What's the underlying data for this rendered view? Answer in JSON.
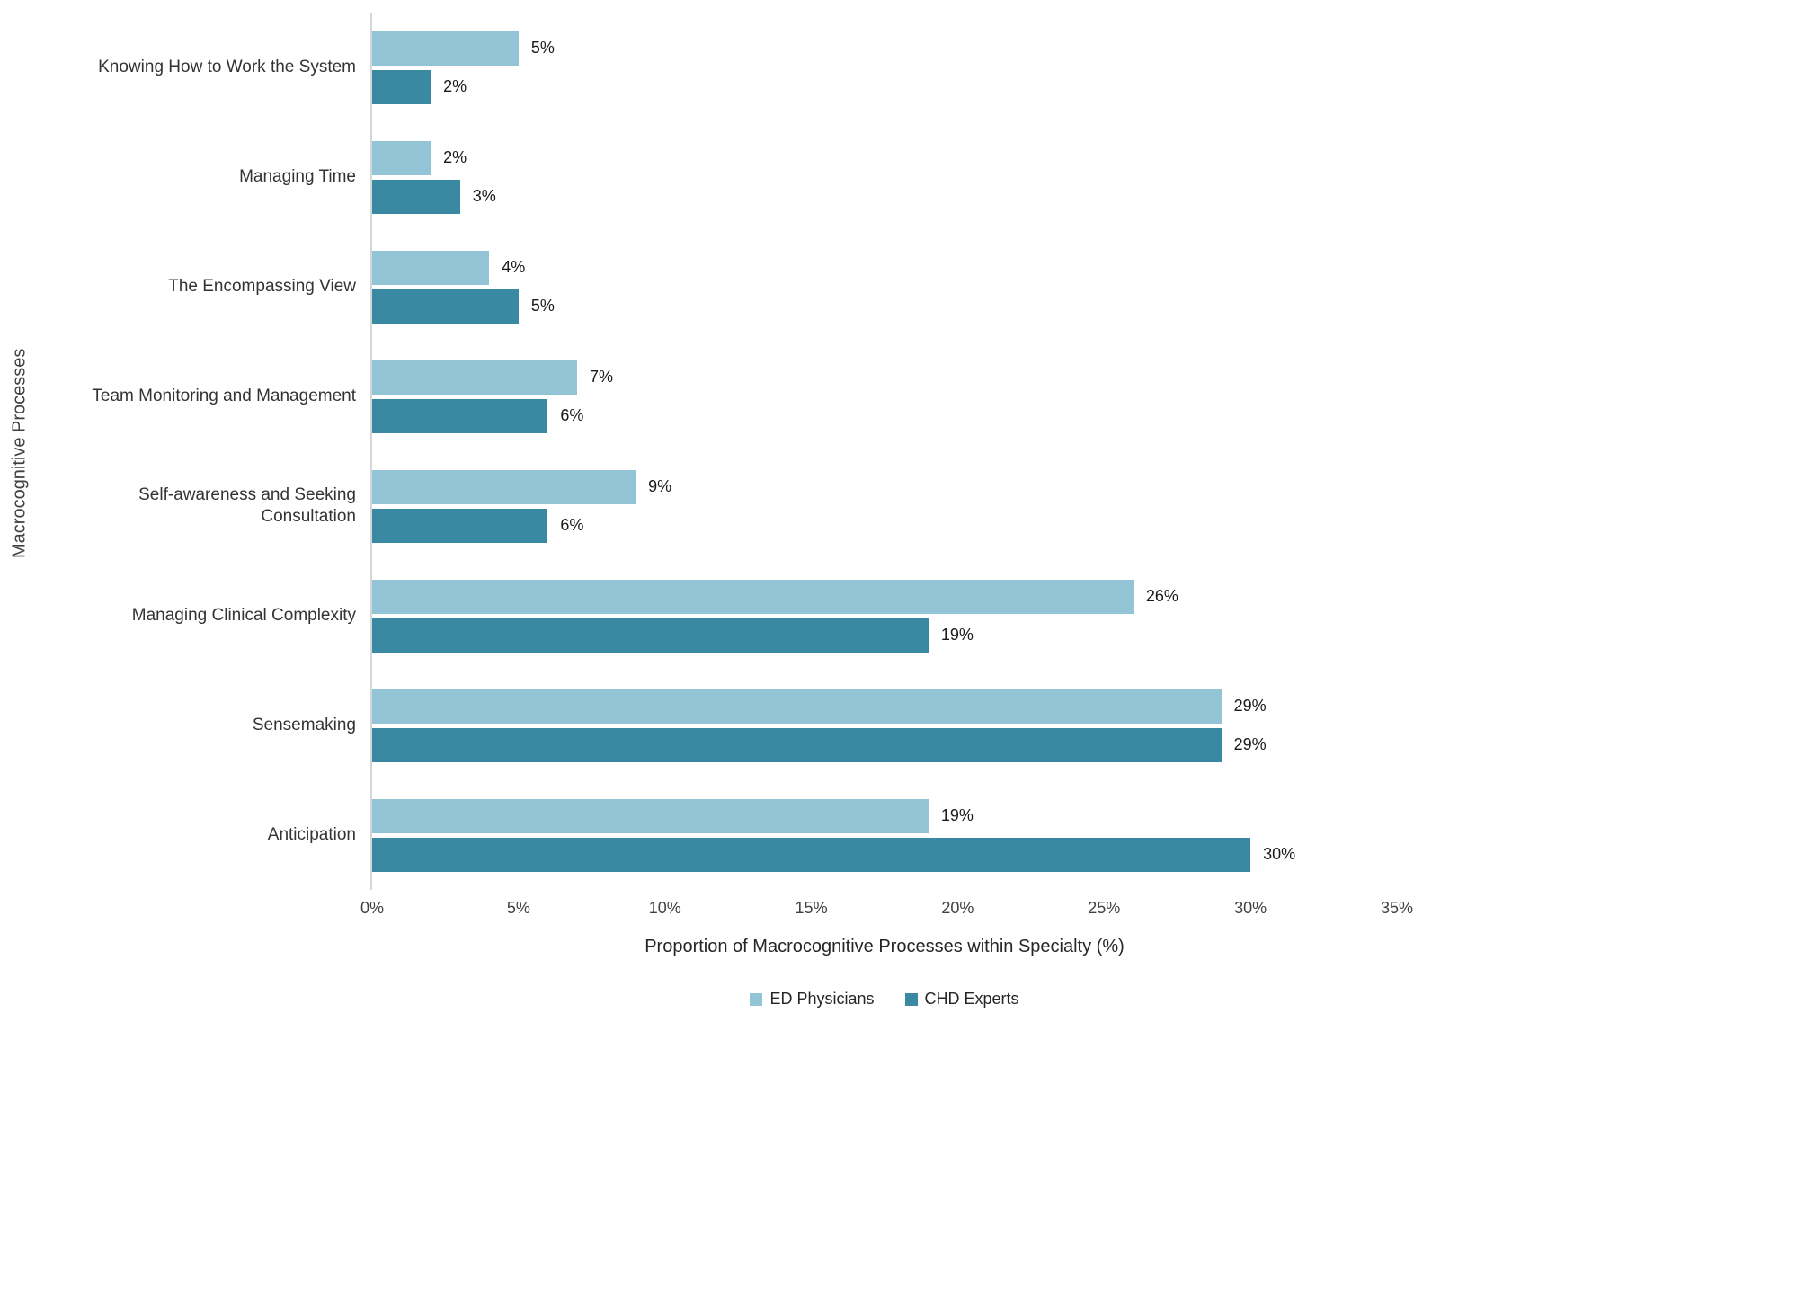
{
  "chart_data": {
    "type": "bar",
    "orientation": "horizontal",
    "title": "",
    "categories": [
      "Knowing How to Work the System",
      "Managing Time",
      "The Encompassing View",
      "Team Monitoring and Management",
      "Self-awareness and Seeking Consultation",
      "Managing Clinical Complexity",
      "Sensemaking",
      "Anticipation"
    ],
    "series": [
      {
        "name": "ED Physicians",
        "color": "#93C4D6",
        "values": [
          5,
          2,
          4,
          7,
          9,
          26,
          29,
          19
        ]
      },
      {
        "name": "CHD Experts",
        "color": "#3A89A3",
        "values": [
          2,
          3,
          5,
          6,
          6,
          19,
          29,
          30
        ]
      }
    ],
    "xlabel": "Proportion of Macrocognitive Processes within Specialty (%)",
    "ylabel": "Macrocognitive Processes",
    "xlim": [
      0,
      35
    ],
    "xticks": [
      "0%",
      "5%",
      "10%",
      "15%",
      "20%",
      "25%",
      "30%",
      "35%"
    ],
    "value_suffix": "%",
    "grid": false,
    "legend_position": "bottom"
  }
}
